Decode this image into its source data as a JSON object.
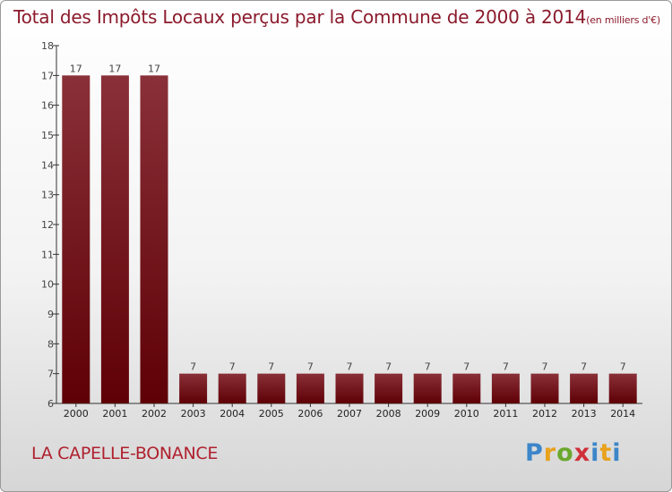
{
  "title": "Total des Impôts Locaux perçus par la Commune de 2000 à 2014",
  "title_unit": "(en milliers d'€)",
  "commune": "LA CAPELLE-BONANCE",
  "logo": {
    "letters": [
      "P",
      "r",
      "o",
      "x",
      "i",
      "t",
      "i"
    ]
  },
  "colors": {
    "bar_top": "#8a3038",
    "bar_bottom": "#5e0006",
    "title": "#8b1a2b",
    "commune": "#b0202e"
  },
  "chart_data": {
    "type": "bar",
    "categories": [
      "2000",
      "2001",
      "2002",
      "2003",
      "2004",
      "2005",
      "2006",
      "2007",
      "2008",
      "2009",
      "2010",
      "2011",
      "2012",
      "2013",
      "2014"
    ],
    "values": [
      17,
      17,
      17,
      7,
      7,
      7,
      7,
      7,
      7,
      7,
      7,
      7,
      7,
      7,
      7
    ],
    "data_labels": [
      "17",
      "17",
      "17",
      "7",
      "7",
      "7",
      "7",
      "7",
      "7",
      "7",
      "7",
      "7",
      "7",
      "7",
      "7"
    ],
    "yticks": [
      6,
      7,
      8,
      9,
      10,
      11,
      12,
      13,
      14,
      15,
      16,
      17,
      18
    ],
    "ylim": [
      6,
      18
    ],
    "grid": false,
    "xlabel": "",
    "ylabel": ""
  }
}
